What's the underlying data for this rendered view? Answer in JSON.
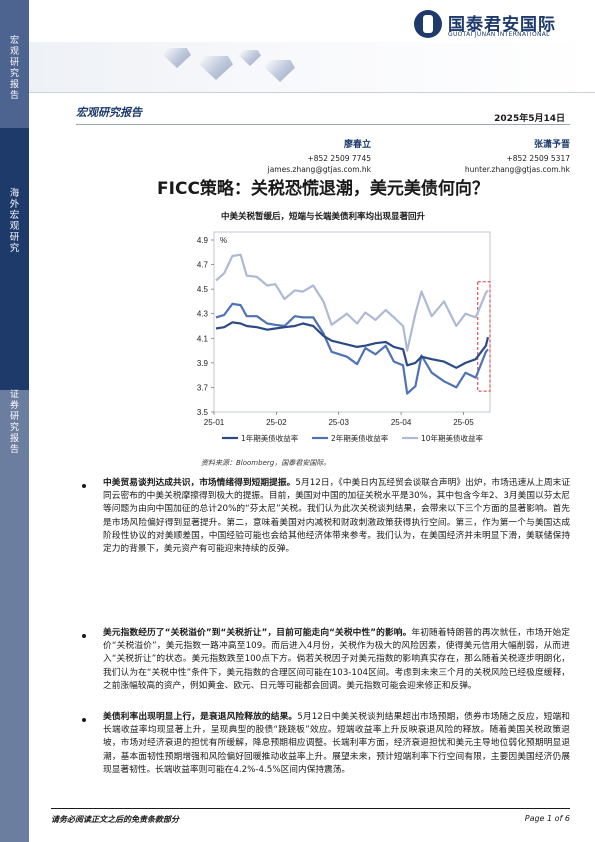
{
  "sidebar": {
    "top_label": "宏观研究报告",
    "middle_label": "海外宏观研究",
    "bottom_label": "证券研究报告"
  },
  "header": {
    "logo_cn": "国泰君安国际",
    "logo_en": "GUOTAI JUNAN INTERNATIONAL",
    "report_type": "宏观研究报告",
    "date": "2025年5月14日"
  },
  "authors": [
    {
      "name": "廖春立",
      "phone": "+852 2509 7745",
      "email": "james.zhang@gtjas.com.hk"
    },
    {
      "name": "张潇予晋",
      "phone": "+852 2509 5317",
      "email": "hunter.zhang@gtjas.com.hk"
    }
  ],
  "title": "FICC策略：关税恐慌退潮，美元美债何向？",
  "chart_title": "中美关税暂缓后，短端与长端美债利率均出现显著回升",
  "chart_source": "资料来源：Bloomberg，国泰君安国际。",
  "chart_data": {
    "type": "line",
    "title": "中美关税暂缓后，短端与长端美债利率均出现显著回升",
    "ylabel": "%",
    "ylim": [
      3.5,
      4.9
    ],
    "yticks": [
      "3.5",
      "3.7",
      "3.9",
      "4.1",
      "4.3",
      "4.5",
      "4.7",
      "4.9"
    ],
    "xticks": [
      "25-01",
      "25-02",
      "25-03",
      "25-04",
      "25-05"
    ],
    "x": [
      "25-01-02",
      "25-01-06",
      "25-01-10",
      "25-01-14",
      "25-01-17",
      "25-01-22",
      "25-01-27",
      "25-01-31",
      "25-02-05",
      "25-02-10",
      "25-02-14",
      "25-02-19",
      "25-02-24",
      "25-02-28",
      "25-03-05",
      "25-03-10",
      "25-03-14",
      "25-03-19",
      "25-03-24",
      "25-03-28",
      "25-04-02",
      "25-04-04",
      "25-04-08",
      "25-04-11",
      "25-04-16",
      "25-04-22",
      "25-04-28",
      "25-05-02",
      "25-05-07",
      "25-05-12",
      "25-05-13"
    ],
    "series": [
      {
        "name": "1年期美债收益率",
        "color": "#2c4a86",
        "values": [
          4.18,
          4.19,
          4.23,
          4.22,
          4.2,
          4.19,
          4.17,
          4.18,
          4.19,
          4.2,
          4.22,
          4.2,
          4.12,
          4.08,
          4.05,
          4.03,
          4.04,
          4.06,
          4.07,
          4.03,
          4.01,
          3.88,
          3.9,
          3.95,
          3.93,
          3.91,
          3.86,
          3.9,
          3.93,
          4.04,
          4.11
        ]
      },
      {
        "name": "2年期美债收益率",
        "color": "#4f72b5",
        "values": [
          4.27,
          4.29,
          4.38,
          4.37,
          4.28,
          4.28,
          4.22,
          4.21,
          4.2,
          4.28,
          4.27,
          4.27,
          4.14,
          3.99,
          3.95,
          3.89,
          4.02,
          3.97,
          4.04,
          3.91,
          3.88,
          3.65,
          3.71,
          3.96,
          3.82,
          3.75,
          3.7,
          3.82,
          3.78,
          3.99,
          4.01
        ]
      },
      {
        "name": "10年期美债收益率",
        "color": "#aeb9d6",
        "values": [
          4.57,
          4.63,
          4.77,
          4.78,
          4.61,
          4.6,
          4.53,
          4.54,
          4.42,
          4.49,
          4.48,
          4.53,
          4.4,
          4.21,
          4.3,
          4.22,
          4.31,
          4.25,
          4.33,
          4.27,
          4.2,
          4.0,
          4.3,
          4.48,
          4.28,
          4.4,
          4.2,
          4.3,
          4.27,
          4.47,
          4.49
        ]
      }
    ],
    "highlight": "25-05-12 to 25-05-13",
    "legend": "bottom",
    "grid": false
  },
  "paragraphs": [
    {
      "lead": "中美贸易谈判达成共识，市场情绪得到短期提振。",
      "text": "5月12日，《中美日内瓦经贸会谈联合声明》出炉，市场迅速从上周末证同云密布的中美关税摩擦得到极大的提振。目前，美国对中国的加征关税水平是30%，其中包含今年2、3月美国以芬太尼等问题为由向中国加征的总计20%的“芬太尼”关税。我们认为此次关税谈判结果，会带来以下三个方面的显著影响。首先是市场风险偏好得到显著提升。第二，意味着美国对内减税和财政刺激政策获得执行空间。第三，作为第一个与美国达成阶段性协议的对美顺差国，中国经验可能也会给其他经济体带来参考。我们认为，在美国经济并未明显下滑，美联储保持定力的背景下，美元资产有可能迎来持续的反弹。"
    },
    {
      "lead": "美元指数经历了“关税溢价”到“关税折让”，目前可能走向“关税中性”的影响。",
      "text": "年初随着特朗普的再次就任，市场开始定价“关税溢价”，美元指数一路冲高至109。而后进入4月份，关税作为极大的风险因素，使得美元信用大幅削弱，从而进入“关税折让”的状态。美元指数跌至100点下方。倘若关税因子对美元指数的影响真实存在，那么随着关税逐步明朗化，我们认为在“关税中性”条件下，美元指数的合理区间可能在103-104区间。考虑到未来三个月的关税风险已经极度缓释，之前涨幅较高的资产，例如黄金、欧元、日元等可能都会回调。美元指数可能会迎来修正和反弹。"
    },
    {
      "lead": "美债利率出现明显上行，是衰退风险释放的结果。",
      "text": "5月12日中美关税谈判结果超出市场预期，债券市场随之反应，短端和长端收益率均现显著上升，呈现典型的股债“跷跷板”效应。短端收益率上升反映衰退风险的释放。随着美国关税政策退坡，市场对经济衰退的担忧有所缓解，降息预期相应调整。长端利率方面，经济衰退担忧和美元主导地位弱化预期明显退潮，基本面韧性预期增强和风险偏好回暖推动收益率上升。展望未来，预计短端利率下行空间有限，主要因美国经济仍展现显著韧性。长端收益率则可能在4.2%-4.5%区间内保持震荡。"
    }
  ],
  "footer": {
    "disclaimer": "请务必阅读正文之后的免责条款部分",
    "page": "Page 1 of 6"
  }
}
